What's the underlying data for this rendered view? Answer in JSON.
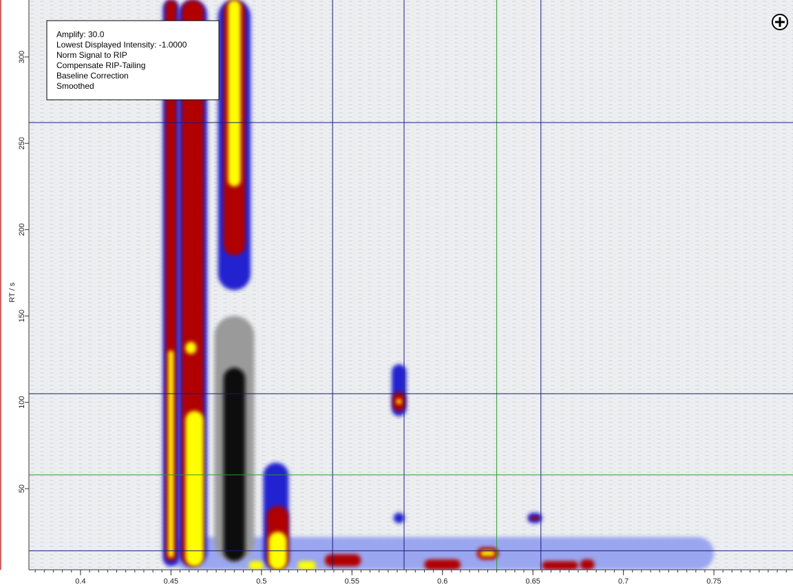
{
  "chart_data": {
    "type": "heatmap",
    "y_label": "RT / s",
    "annotations": [
      "Amplify: 30.0",
      "Lowest Displayed Intensity: -1.0000",
      "Norm Signal to RIP",
      "Compensate RIP-Tailing",
      "Baseline Correction",
      "Smoothed"
    ],
    "xlim": [
      0.3715,
      0.7937
    ],
    "ylim": [
      3,
      333
    ],
    "xticks": [
      0.4,
      0.45,
      0.5,
      0.55,
      0.6,
      0.65,
      0.7,
      0.75
    ],
    "yticks": [
      50,
      100,
      150,
      200,
      250,
      300
    ],
    "vlines": [
      {
        "value": 0.5393,
        "color": "#1a1a7a"
      },
      {
        "value": 0.5788,
        "color": "#1a1a7a"
      },
      {
        "value": 0.63,
        "color": "#2a9a2a"
      },
      {
        "value": 0.6544,
        "color": "#1a1a7a"
      }
    ],
    "hlines": [
      {
        "value": 262,
        "color": "#1a1a7a"
      },
      {
        "value": 105,
        "color": "#1a1a7a"
      },
      {
        "value": 58,
        "color": "#2a9a2a"
      },
      {
        "value": 14,
        "color": "#1a1a7a"
      }
    ],
    "features": [
      {
        "x": 0.6,
        "rt": [
          3,
          22
        ],
        "w": 0.3,
        "color": "#9aa6f0"
      },
      {
        "x": 0.485,
        "rt": [
          8,
          150
        ],
        "w": 0.022,
        "color": "#9a9a9a"
      },
      {
        "x": 0.485,
        "rt": [
          8,
          120
        ],
        "w": 0.012,
        "color": "#111111"
      },
      {
        "x": 0.45,
        "rt": [
          5,
          333
        ],
        "w": 0.009,
        "color": "#2020d0"
      },
      {
        "x": 0.45,
        "rt": [
          8,
          333
        ],
        "w": 0.006,
        "color": "#b00000"
      },
      {
        "x": 0.45,
        "rt": [
          10,
          130
        ],
        "w": 0.003,
        "color": "#ffff00"
      },
      {
        "x": 0.462,
        "rt": [
          5,
          333
        ],
        "w": 0.016,
        "color": "#2020d0"
      },
      {
        "x": 0.462,
        "rt": [
          5,
          333
        ],
        "w": 0.012,
        "color": "#b00000"
      },
      {
        "x": 0.463,
        "rt": [
          5,
          95
        ],
        "w": 0.01,
        "color": "#ffff00"
      },
      {
        "x": 0.461,
        "rt": [
          128,
          135
        ],
        "w": 0.006,
        "color": "#ffff00"
      },
      {
        "x": 0.485,
        "rt": [
          165,
          333
        ],
        "w": 0.018,
        "color": "#2020d0"
      },
      {
        "x": 0.485,
        "rt": [
          185,
          333
        ],
        "w": 0.012,
        "color": "#b00000"
      },
      {
        "x": 0.485,
        "rt": [
          225,
          333
        ],
        "w": 0.007,
        "color": "#ffff00"
      },
      {
        "x": 0.508,
        "rt": [
          3,
          65
        ],
        "w": 0.014,
        "color": "#2020d0"
      },
      {
        "x": 0.509,
        "rt": [
          3,
          40
        ],
        "w": 0.012,
        "color": "#b00000"
      },
      {
        "x": 0.509,
        "rt": [
          3,
          25
        ],
        "w": 0.01,
        "color": "#ffff00"
      },
      {
        "x": 0.576,
        "rt": [
          92,
          122
        ],
        "w": 0.008,
        "color": "#2020d0"
      },
      {
        "x": 0.576,
        "rt": [
          95,
          106
        ],
        "w": 0.007,
        "color": "#b00000"
      },
      {
        "x": 0.576,
        "rt": [
          99,
          102
        ],
        "w": 0.003,
        "color": "#ffff00"
      },
      {
        "x": 0.576,
        "rt": [
          30,
          36
        ],
        "w": 0.006,
        "color": "#2020d0"
      },
      {
        "x": 0.651,
        "rt": [
          30,
          36
        ],
        "w": 0.008,
        "color": "#2020d0"
      },
      {
        "x": 0.651,
        "rt": [
          32,
          34
        ],
        "w": 0.005,
        "color": "#b00000"
      },
      {
        "x": 0.545,
        "rt": [
          5,
          12
        ],
        "w": 0.02,
        "color": "#b00000"
      },
      {
        "x": 0.6,
        "rt": [
          3,
          9
        ],
        "w": 0.02,
        "color": "#b00000"
      },
      {
        "x": 0.625,
        "rt": [
          9,
          16
        ],
        "w": 0.012,
        "color": "#b00000"
      },
      {
        "x": 0.625,
        "rt": [
          11,
          14
        ],
        "w": 0.008,
        "color": "#ffff00"
      },
      {
        "x": 0.665,
        "rt": [
          3,
          8
        ],
        "w": 0.02,
        "color": "#b00000"
      },
      {
        "x": 0.525,
        "rt": [
          3,
          8
        ],
        "w": 0.01,
        "color": "#ffff00"
      },
      {
        "x": 0.497,
        "rt": [
          3,
          8
        ],
        "w": 0.008,
        "color": "#ffff00"
      },
      {
        "x": 0.68,
        "rt": [
          3,
          9
        ],
        "w": 0.008,
        "color": "#b00000"
      }
    ]
  }
}
